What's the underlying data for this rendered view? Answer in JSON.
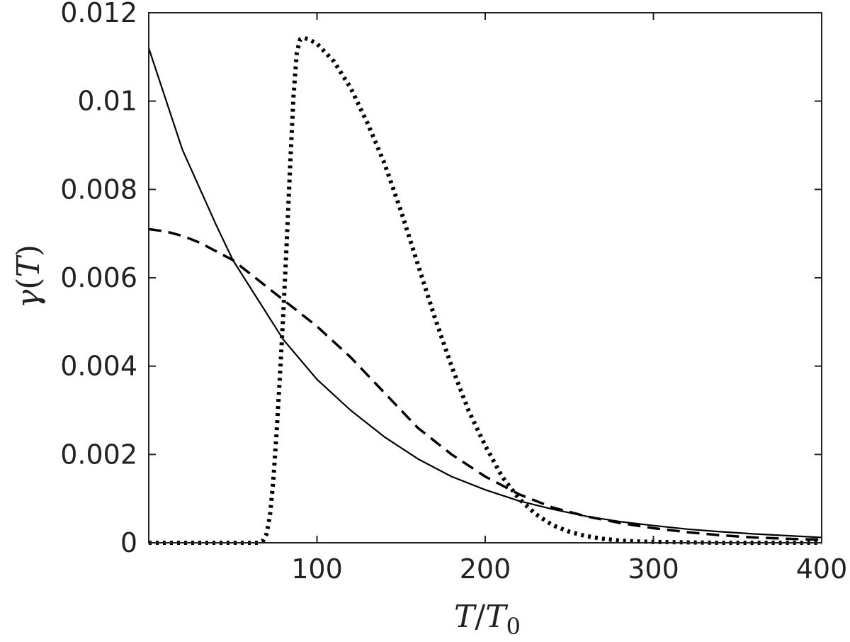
{
  "chart_data": {
    "type": "line",
    "title": "",
    "xlabel_var": "T",
    "xlabel_sep": "/",
    "xlabel_base": "T",
    "xlabel_sub": "0",
    "ylabel_func": "γ",
    "ylabel_open": "(",
    "ylabel_var": "T",
    "ylabel_close": ")",
    "xlim": [
      0,
      400
    ],
    "ylim": [
      0,
      0.012
    ],
    "x_ticks": [
      100,
      200,
      300,
      400
    ],
    "x_tick_labels": [
      "100",
      "200",
      "300",
      "400"
    ],
    "y_ticks": [
      0,
      0.002,
      0.004,
      0.006,
      0.008,
      0.01,
      0.012
    ],
    "y_tick_labels": [
      "0",
      "0.002",
      "0.004",
      "0.006",
      "0.008",
      "0.01",
      "0.012"
    ],
    "grid": false,
    "legend": "none",
    "series": [
      {
        "line_style": "solid",
        "color": "#000000",
        "x": [
          0,
          20,
          40,
          50,
          60,
          80,
          100,
          120,
          140,
          160,
          180,
          200,
          220,
          240,
          260,
          280,
          300,
          320,
          340,
          360,
          380,
          400
        ],
        "y": [
          0.0112,
          0.0089,
          0.0072,
          0.0064,
          0.0058,
          0.0046,
          0.0037,
          0.003,
          0.0024,
          0.0019,
          0.0015,
          0.0012,
          0.00095,
          0.00076,
          0.0006,
          0.00048,
          0.00039,
          0.00031,
          0.00025,
          0.0002,
          0.00016,
          0.00012
        ]
      },
      {
        "line_style": "dashed",
        "color": "#000000",
        "x": [
          0,
          10,
          20,
          30,
          40,
          50,
          60,
          70,
          80,
          90,
          100,
          120,
          140,
          160,
          180,
          200,
          220,
          240,
          260,
          280,
          300,
          320,
          340,
          360,
          380,
          400
        ],
        "y": [
          0.0071,
          0.00705,
          0.00695,
          0.0068,
          0.0066,
          0.0064,
          0.0061,
          0.0058,
          0.0055,
          0.0052,
          0.0049,
          0.0042,
          0.0034,
          0.0026,
          0.002,
          0.0015,
          0.0011,
          0.0008,
          0.0006,
          0.00045,
          0.00033,
          0.00024,
          0.00017,
          0.00012,
          9e-05,
          7e-05
        ]
      },
      {
        "line_style": "dotted",
        "color": "#000000",
        "x": [
          0,
          60,
          65,
          68,
          70,
          72,
          74,
          76,
          78,
          80,
          82,
          84,
          86,
          88,
          90,
          92,
          95,
          100,
          110,
          120,
          130,
          140,
          150,
          160,
          170,
          180,
          190,
          200,
          210,
          220,
          230,
          240,
          250,
          260,
          270,
          280,
          290,
          300,
          320,
          340,
          360,
          400
        ],
        "y": [
          0,
          0,
          0,
          5e-05,
          0.0002,
          0.0006,
          0.0014,
          0.0025,
          0.0038,
          0.0052,
          0.0068,
          0.0085,
          0.0101,
          0.0111,
          0.0114,
          0.01143,
          0.0114,
          0.0113,
          0.0109,
          0.0103,
          0.0095,
          0.0086,
          0.0075,
          0.0063,
          0.0051,
          0.004,
          0.003,
          0.0022,
          0.0015,
          0.001,
          0.00065,
          0.0004,
          0.00025,
          0.00015,
          9e-05,
          5e-05,
          3e-05,
          2e-05,
          1e-05,
          0,
          0,
          0
        ]
      }
    ]
  }
}
